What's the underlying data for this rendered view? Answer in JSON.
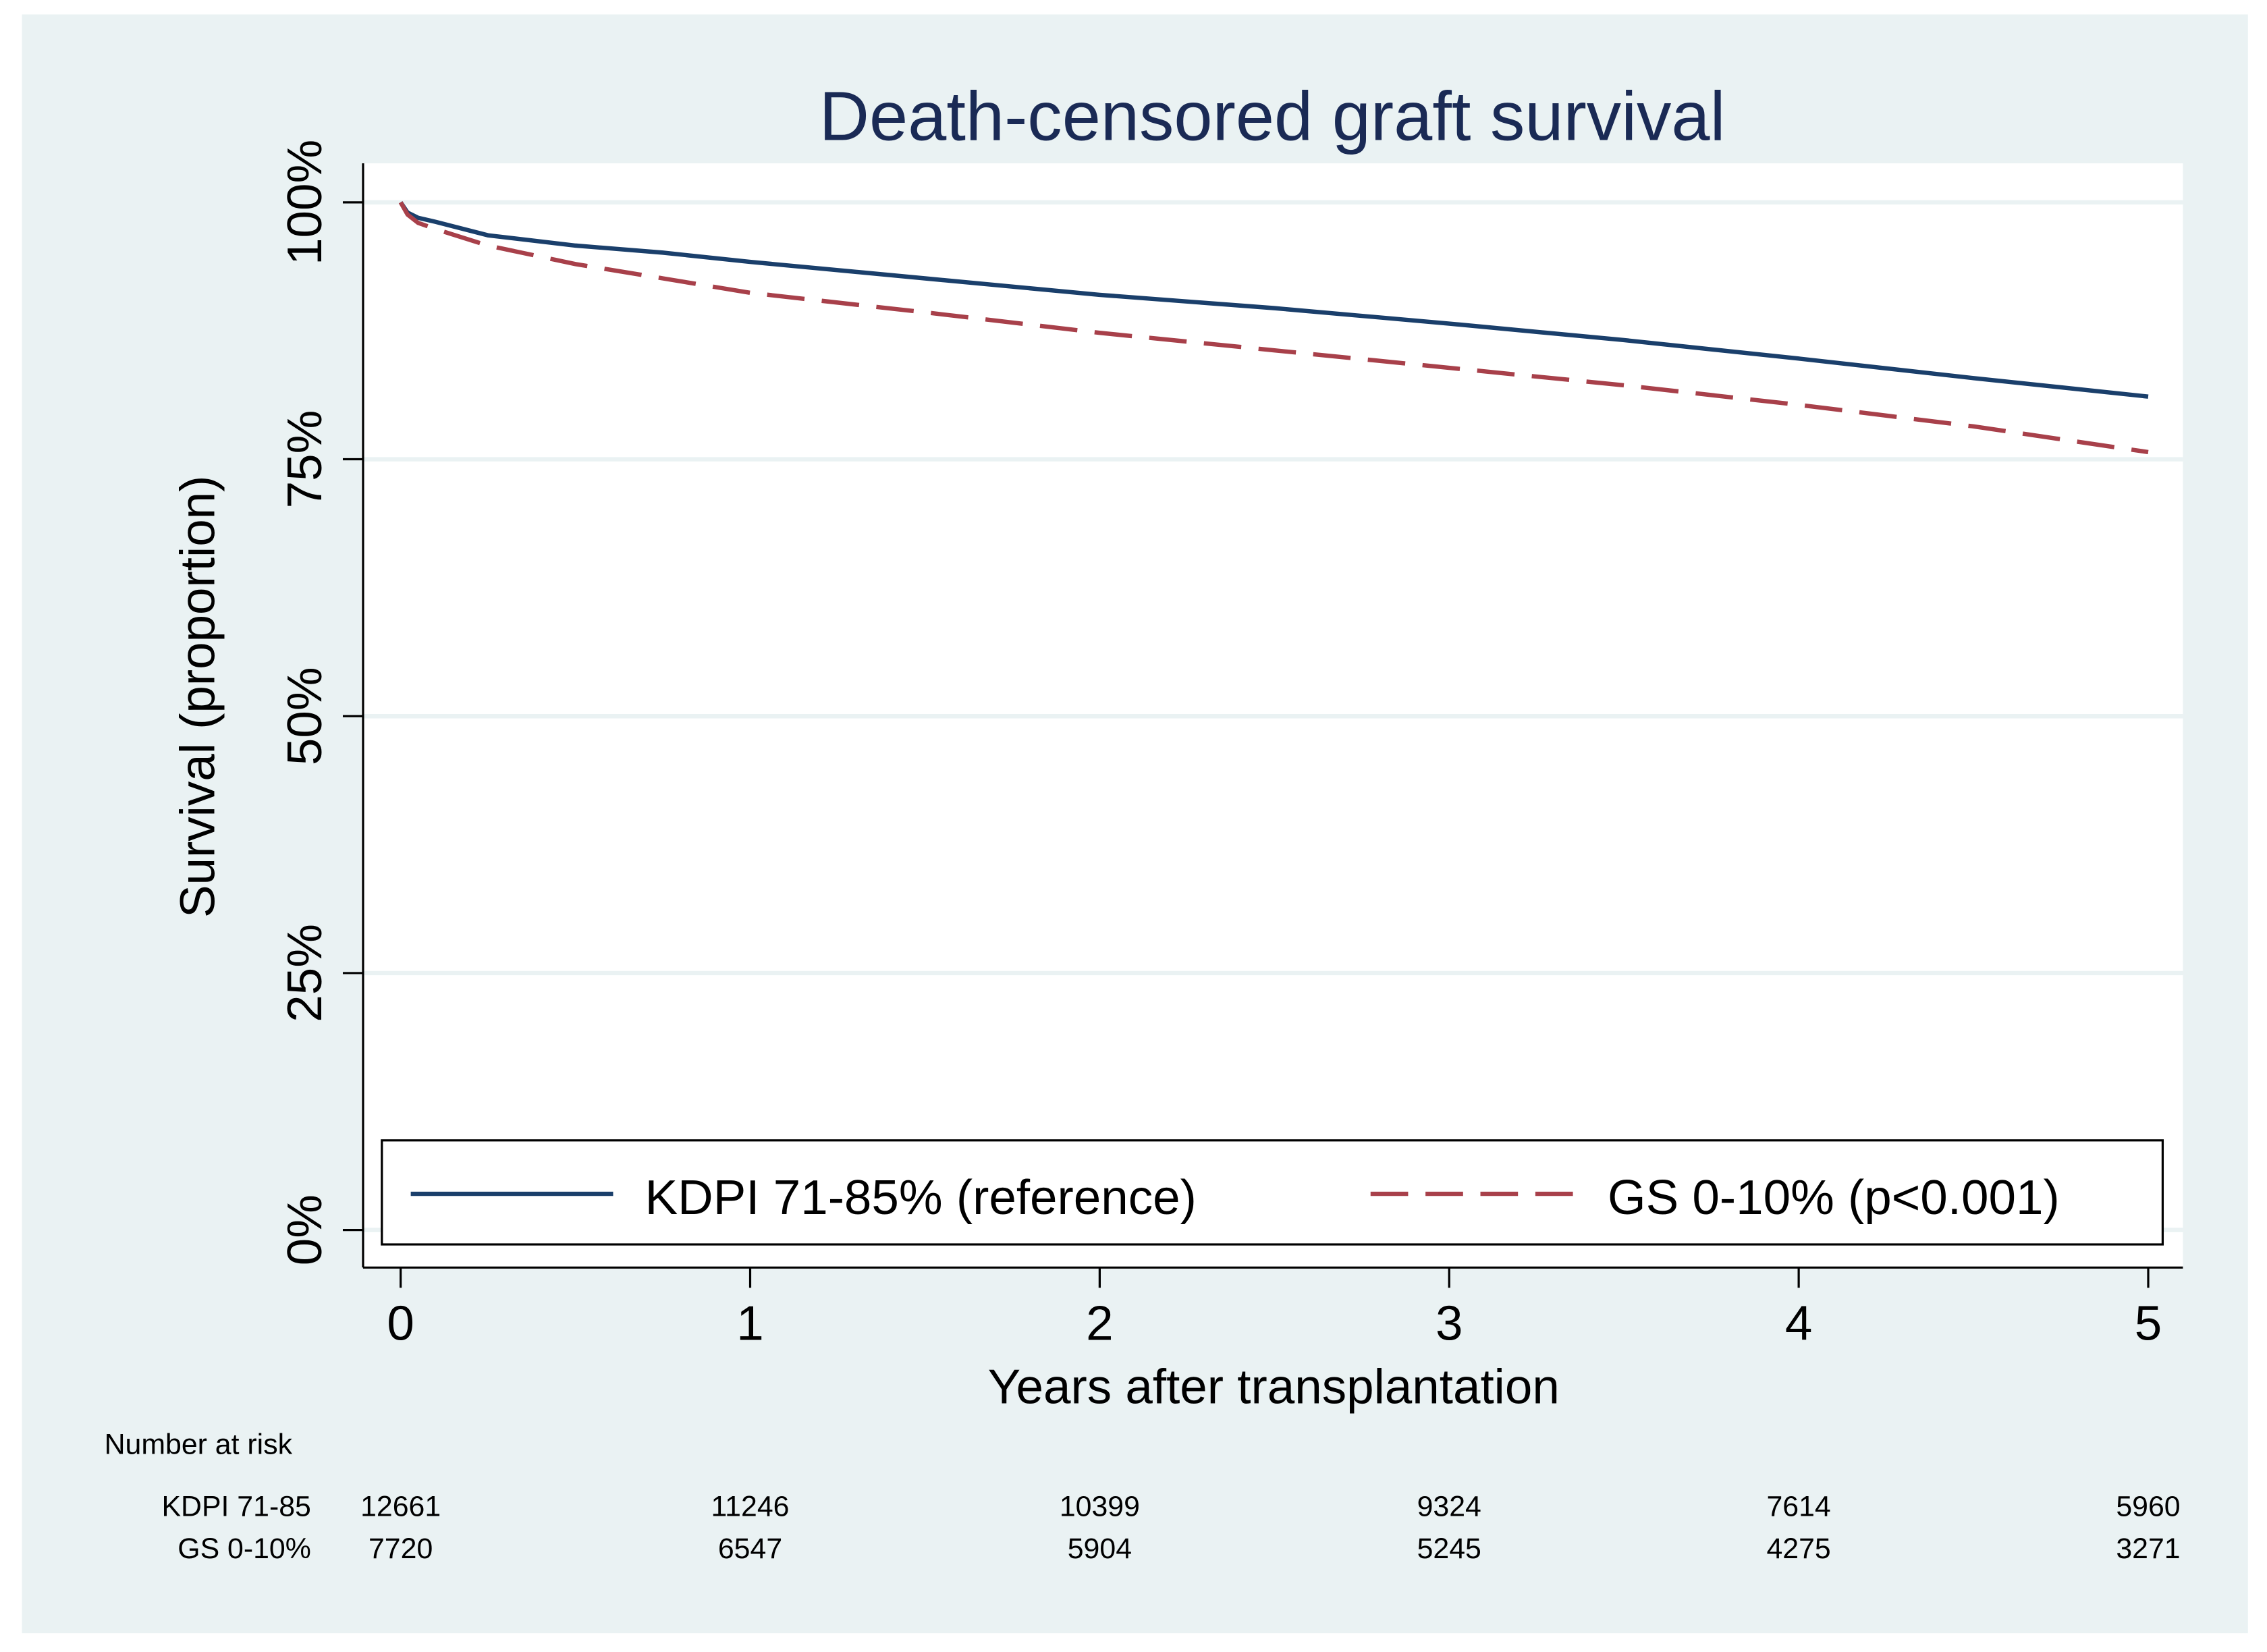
{
  "chart_data": {
    "type": "line",
    "title": "Death-censored graft survival",
    "xlabel": "Years after transplantation",
    "ylabel": "Survival (proportion)",
    "xlim": [
      0,
      5
    ],
    "ylim": [
      0,
      1
    ],
    "x_ticks": [
      "0",
      "1",
      "2",
      "3",
      "4",
      "5"
    ],
    "y_ticks": [
      {
        "value": 0,
        "label": "0%"
      },
      {
        "value": 0.25,
        "label": "25%"
      },
      {
        "value": 0.5,
        "label": "50%"
      },
      {
        "value": 0.75,
        "label": "75%"
      },
      {
        "value": 1,
        "label": "100%"
      }
    ],
    "grid": true,
    "legend_position": "bottom-inside",
    "series": [
      {
        "name": "KDPI 71-85% (reference)",
        "color": "#1a3f6b",
        "style": "solid",
        "x": [
          0,
          0.02,
          0.05,
          0.1,
          0.25,
          0.5,
          0.75,
          1,
          1.5,
          2,
          2.5,
          3,
          3.5,
          4,
          4.5,
          5
        ],
        "y": [
          1.0,
          0.99,
          0.985,
          0.981,
          0.968,
          0.958,
          0.951,
          0.942,
          0.926,
          0.91,
          0.897,
          0.882,
          0.866,
          0.848,
          0.829,
          0.811
        ]
      },
      {
        "name": "GS 0-10% (p<0.001)",
        "color": "#a8404a",
        "style": "dashed",
        "x": [
          0,
          0.02,
          0.05,
          0.1,
          0.25,
          0.5,
          0.75,
          1,
          1.5,
          2,
          2.5,
          3,
          3.5,
          4,
          4.5,
          5
        ],
        "y": [
          1.0,
          0.988,
          0.98,
          0.974,
          0.958,
          0.94,
          0.926,
          0.912,
          0.893,
          0.873,
          0.856,
          0.839,
          0.822,
          0.803,
          0.782,
          0.757
        ]
      }
    ],
    "risk_table": {
      "title": "Number at risk",
      "rows": [
        {
          "label": "KDPI 71-85",
          "values": [
            "12661",
            "11246",
            "10399",
            "9324",
            "7614",
            "5960"
          ]
        },
        {
          "label": "GS 0-10%",
          "values": [
            "7720",
            "6547",
            "5904",
            "5245",
            "4275",
            "3271"
          ]
        }
      ]
    }
  }
}
